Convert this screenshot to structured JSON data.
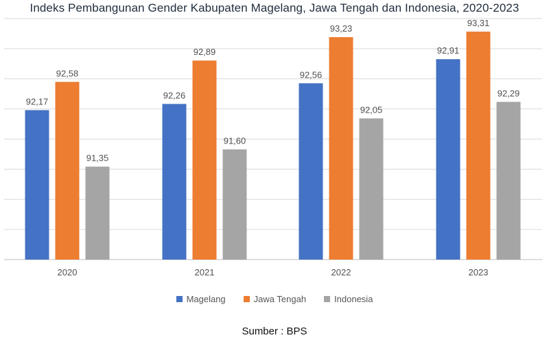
{
  "chart_data": {
    "type": "bar",
    "title": "Indeks Pembangunan Gender Kabupaten Magelang, Jawa Tengah dan Indonesia, 2020-2023",
    "categories": [
      "2020",
      "2021",
      "2022",
      "2023"
    ],
    "series": [
      {
        "name": "Magelang",
        "color": "#4472c4",
        "values": [
          92.17,
          92.26,
          92.56,
          92.91
        ],
        "labels": [
          "92,17",
          "92,26",
          "92,56",
          "92,91"
        ]
      },
      {
        "name": "Jawa Tengah",
        "color": "#ed7d31",
        "values": [
          92.58,
          92.89,
          93.23,
          93.31
        ],
        "labels": [
          "92,58",
          "92,89",
          "93,23",
          "93,31"
        ]
      },
      {
        "name": "Indonesia",
        "color": "#a5a5a5",
        "values": [
          91.35,
          91.6,
          92.05,
          92.29
        ],
        "labels": [
          "91,35",
          "91,60",
          "92,05",
          "92,29"
        ]
      }
    ],
    "ylim": [
      90.0,
      93.5
    ],
    "grid": true,
    "legend_position": "bottom",
    "note": "Sumber : BPS"
  }
}
